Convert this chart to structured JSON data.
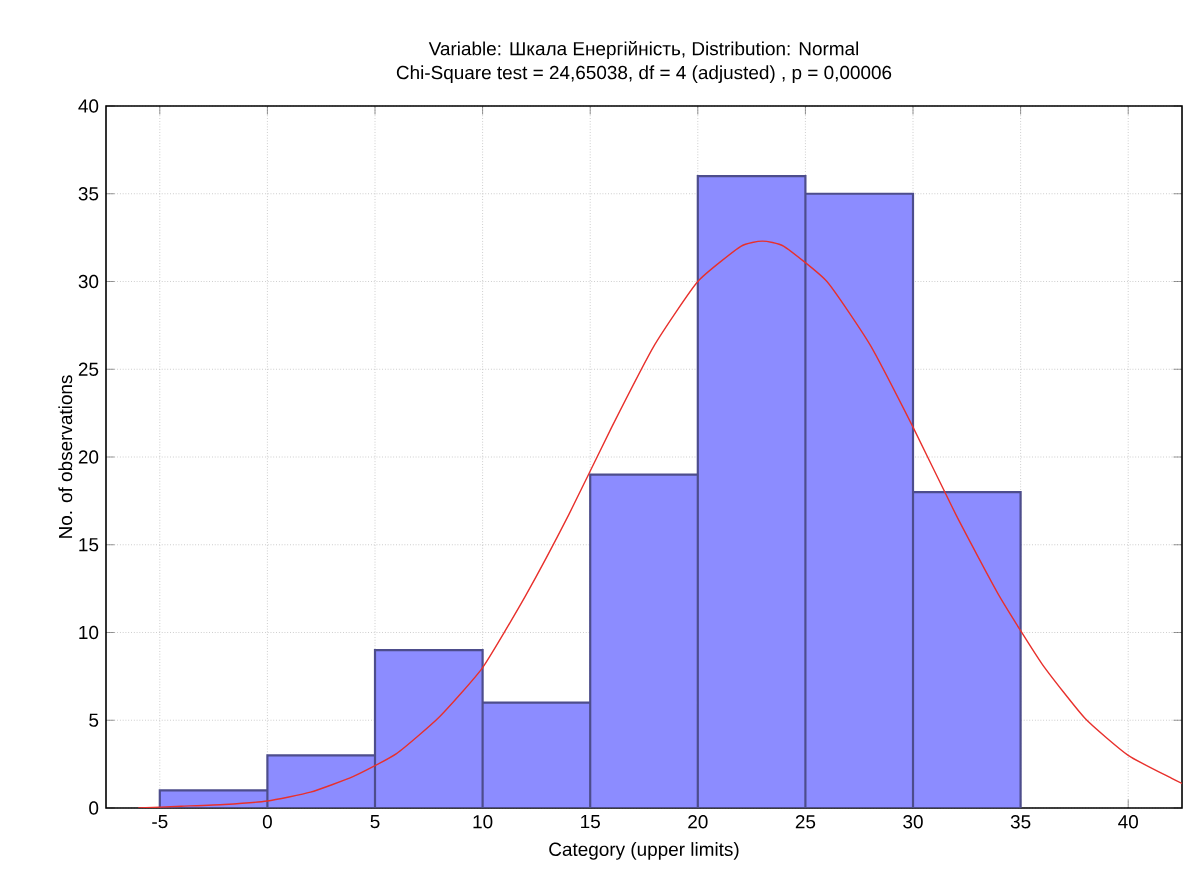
{
  "chart_data": {
    "type": "histogram",
    "title": "Variable: Шкала Енергійність, Distribution: Normal",
    "subtitle": "Chi-Square test = 24,65038, df = 4 (adjusted) , p = 0,00006",
    "xlabel": "Category (upper limits)",
    "ylabel": "No. of observations",
    "bins": [
      -5,
      0,
      5,
      10,
      15,
      20,
      25,
      30,
      35
    ],
    "values": [
      1,
      3,
      9,
      6,
      19,
      36,
      35,
      18
    ],
    "color": "#8c8cff",
    "series": [
      {
        "type": "line",
        "color": "#e8302c",
        "x": [
          -6,
          -4,
          -2,
          0,
          2,
          4,
          6,
          8,
          10,
          12,
          14,
          16,
          18,
          20,
          22,
          23,
          24,
          26,
          28,
          30,
          32,
          34,
          36,
          38,
          40,
          42,
          42.5
        ],
        "values": [
          0,
          0.1,
          0.2,
          0.4,
          0.9,
          1.8,
          3.1,
          5.2,
          8.0,
          12.1,
          16.7,
          21.7,
          26.4,
          30.0,
          32.0,
          32.3,
          32.0,
          30.0,
          26.4,
          21.7,
          16.7,
          12.1,
          8.2,
          5.1,
          3.0,
          1.7,
          1.4
        ]
      }
    ],
    "xlim": [
      -7.5,
      42.5
    ],
    "ylim": [
      0,
      40
    ],
    "xticks": [
      -5,
      0,
      5,
      10,
      15,
      20,
      25,
      30,
      35,
      40
    ],
    "yticks": [
      0,
      5,
      10,
      15,
      20,
      25,
      30,
      35,
      40
    ],
    "grid": true
  }
}
